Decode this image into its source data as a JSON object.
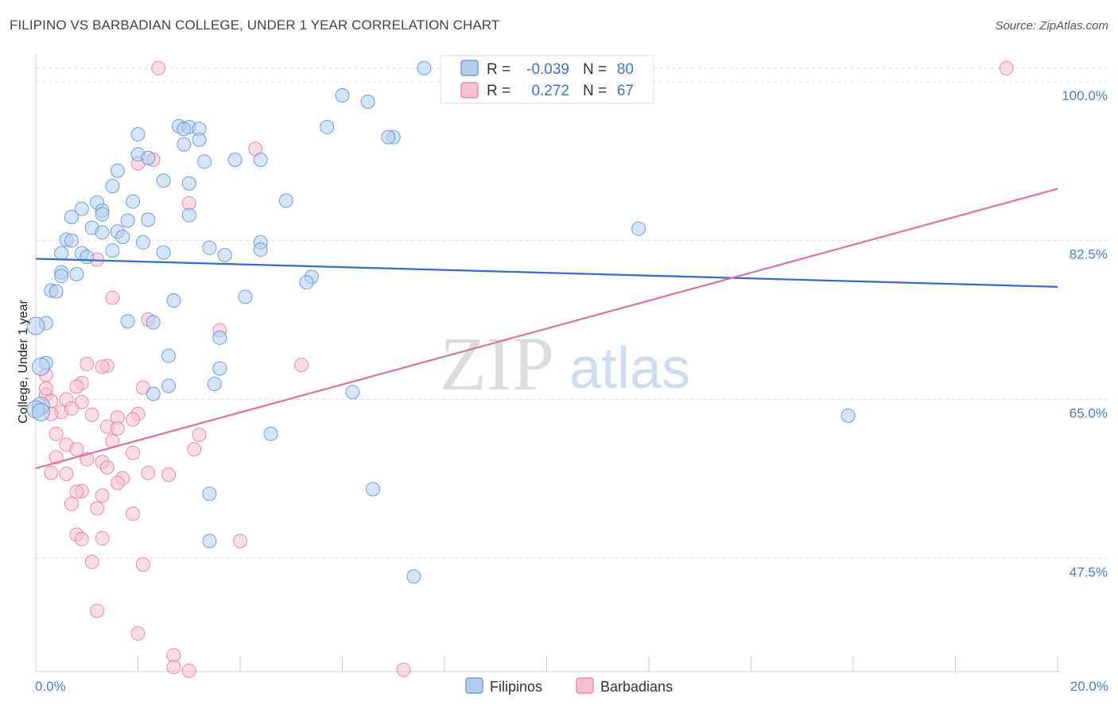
{
  "header": {
    "title": "FILIPINO VS BARBADIAN COLLEGE, UNDER 1 YEAR CORRELATION CHART",
    "source": "Source: ZipAtlas.com"
  },
  "colors": {
    "blue": "#5b8fd6",
    "blue_fill": "#b3cdf1",
    "blue_line": "#2f6fcd",
    "pink": "#e8799f",
    "pink_fill": "#f6c0d2",
    "pink_line": "#e0709a",
    "grid": "#dddddd",
    "tick_text": "#4a7bd0"
  },
  "watermark": {
    "zip": "ZIP",
    "atlas": "atlas"
  },
  "chart_data": {
    "type": "scatter",
    "title": "FILIPINO VS BARBADIAN COLLEGE, UNDER 1 YEAR CORRELATION CHART",
    "xlabel": "",
    "ylabel": "College, Under 1 year",
    "xlim": [
      0,
      20
    ],
    "ylim": [
      35,
      102
    ],
    "x_tick_labels": [
      "0.0%",
      "20.0%"
    ],
    "y_ticks": [
      47.5,
      65.0,
      82.5,
      100.0
    ],
    "y_tick_labels": [
      "47.5%",
      "65.0%",
      "82.5%",
      "100.0%"
    ],
    "legend": [
      {
        "series": "Filipinos",
        "r_label": "R =",
        "r_value": "-0.039",
        "n_label": "N =",
        "n_value": "80"
      },
      {
        "series": "Barbadians",
        "r_label": "R =",
        "r_value": "0.272",
        "n_label": "N =",
        "n_value": "67"
      }
    ],
    "series": [
      {
        "name": "Filipinos",
        "trend": {
          "x": [
            0,
            20
          ],
          "y": [
            80.5,
            77.4
          ]
        },
        "points": [
          [
            7.6,
            101.5
          ],
          [
            6.0,
            98.5
          ],
          [
            6.5,
            97.8
          ],
          [
            2.8,
            95.1
          ],
          [
            3.0,
            95.0
          ],
          [
            2.9,
            94.8
          ],
          [
            3.2,
            94.8
          ],
          [
            5.7,
            95.0
          ],
          [
            2.0,
            94.2
          ],
          [
            3.2,
            93.6
          ],
          [
            7.0,
            93.9
          ],
          [
            6.9,
            93.9
          ],
          [
            2.9,
            93.1
          ],
          [
            2.0,
            92.0
          ],
          [
            2.2,
            91.6
          ],
          [
            3.3,
            91.2
          ],
          [
            3.9,
            91.4
          ],
          [
            4.4,
            91.4
          ],
          [
            1.6,
            90.2
          ],
          [
            2.5,
            89.1
          ],
          [
            1.5,
            88.5
          ],
          [
            3.0,
            88.8
          ],
          [
            1.9,
            86.8
          ],
          [
            4.9,
            86.9
          ],
          [
            1.2,
            86.7
          ],
          [
            0.9,
            86.0
          ],
          [
            1.3,
            85.8
          ],
          [
            1.3,
            85.4
          ],
          [
            3.0,
            85.3
          ],
          [
            0.7,
            85.1
          ],
          [
            1.8,
            84.7
          ],
          [
            2.2,
            84.8
          ],
          [
            1.1,
            83.9
          ],
          [
            1.6,
            83.5
          ],
          [
            1.3,
            83.4
          ],
          [
            11.8,
            83.8
          ],
          [
            1.7,
            82.9
          ],
          [
            0.6,
            82.6
          ],
          [
            0.7,
            82.5
          ],
          [
            2.1,
            82.3
          ],
          [
            4.4,
            82.3
          ],
          [
            3.4,
            81.7
          ],
          [
            1.5,
            81.4
          ],
          [
            2.5,
            81.2
          ],
          [
            0.5,
            81.1
          ],
          [
            0.9,
            81.1
          ],
          [
            3.7,
            80.9
          ],
          [
            1.0,
            80.7
          ],
          [
            4.4,
            81.5
          ],
          [
            0.5,
            79.0
          ],
          [
            0.8,
            78.8
          ],
          [
            5.4,
            78.5
          ],
          [
            0.5,
            78.6
          ],
          [
            5.3,
            77.9
          ],
          [
            0.3,
            77.0
          ],
          [
            0.4,
            76.9
          ],
          [
            4.1,
            76.3
          ],
          [
            2.7,
            75.9
          ],
          [
            1.8,
            73.6
          ],
          [
            2.3,
            73.5
          ],
          [
            0.2,
            73.4
          ],
          [
            3.6,
            71.8
          ],
          [
            2.6,
            69.8
          ],
          [
            0.2,
            69.0
          ],
          [
            0.1,
            68.6
          ],
          [
            3.6,
            68.4
          ],
          [
            3.5,
            66.7
          ],
          [
            2.6,
            66.5
          ],
          [
            2.3,
            65.6
          ],
          [
            0.1,
            64.3
          ],
          [
            0.0,
            63.9
          ],
          [
            0.1,
            63.6
          ],
          [
            15.9,
            63.2
          ],
          [
            4.6,
            61.2
          ],
          [
            3.4,
            54.6
          ],
          [
            6.6,
            55.1
          ],
          [
            3.4,
            49.4
          ],
          [
            7.4,
            45.5
          ],
          [
            0.0,
            73.1
          ],
          [
            6.2,
            65.8
          ]
        ]
      },
      {
        "name": "Barbadians",
        "trend": {
          "x": [
            0,
            20
          ],
          "y": [
            57.4,
            88.2
          ]
        },
        "points": [
          [
            2.4,
            101.5
          ],
          [
            19.0,
            101.5
          ],
          [
            4.3,
            92.6
          ],
          [
            2.3,
            91.4
          ],
          [
            2.0,
            91.0
          ],
          [
            3.0,
            86.6
          ],
          [
            1.2,
            80.4
          ],
          [
            1.5,
            76.2
          ],
          [
            2.2,
            73.8
          ],
          [
            3.6,
            72.6
          ],
          [
            1.0,
            68.9
          ],
          [
            1.4,
            68.7
          ],
          [
            1.3,
            68.6
          ],
          [
            5.2,
            68.8
          ],
          [
            0.2,
            67.7
          ],
          [
            0.9,
            66.8
          ],
          [
            0.8,
            66.4
          ],
          [
            2.1,
            66.3
          ],
          [
            0.2,
            65.5
          ],
          [
            0.6,
            65.0
          ],
          [
            0.3,
            64.8
          ],
          [
            0.9,
            64.7
          ],
          [
            0.5,
            63.6
          ],
          [
            0.3,
            63.4
          ],
          [
            0.7,
            64.0
          ],
          [
            1.1,
            63.3
          ],
          [
            2.0,
            63.4
          ],
          [
            1.6,
            63.0
          ],
          [
            1.9,
            62.8
          ],
          [
            1.4,
            62.0
          ],
          [
            1.6,
            61.8
          ],
          [
            0.4,
            61.2
          ],
          [
            1.5,
            60.4
          ],
          [
            0.6,
            60.0
          ],
          [
            3.1,
            59.5
          ],
          [
            0.8,
            59.5
          ],
          [
            1.9,
            59.1
          ],
          [
            0.4,
            58.6
          ],
          [
            1.0,
            58.4
          ],
          [
            1.3,
            58.1
          ],
          [
            1.4,
            57.5
          ],
          [
            0.3,
            56.9
          ],
          [
            0.6,
            56.8
          ],
          [
            1.7,
            56.3
          ],
          [
            2.2,
            56.9
          ],
          [
            2.6,
            56.7
          ],
          [
            1.6,
            55.8
          ],
          [
            0.9,
            54.9
          ],
          [
            0.8,
            54.8
          ],
          [
            1.3,
            54.4
          ],
          [
            0.7,
            53.5
          ],
          [
            1.2,
            53.0
          ],
          [
            1.9,
            52.4
          ],
          [
            0.8,
            50.1
          ],
          [
            1.3,
            49.7
          ],
          [
            0.9,
            49.6
          ],
          [
            4.0,
            49.4
          ],
          [
            1.1,
            47.1
          ],
          [
            2.1,
            46.8
          ],
          [
            1.2,
            41.7
          ],
          [
            2.0,
            39.2
          ],
          [
            2.7,
            36.8
          ],
          [
            2.7,
            35.5
          ],
          [
            3.0,
            35.1
          ],
          [
            7.2,
            35.2
          ],
          [
            0.2,
            66.2
          ],
          [
            3.2,
            61.1
          ]
        ]
      }
    ]
  }
}
